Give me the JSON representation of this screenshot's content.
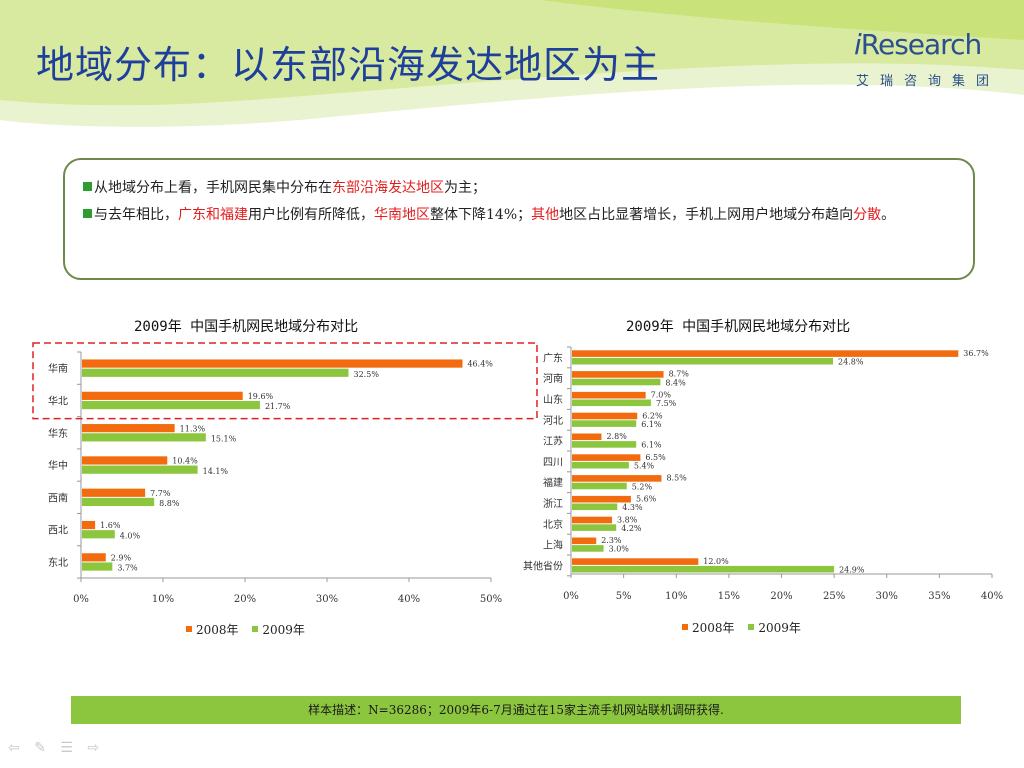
{
  "title": "地域分布：以东部沿海发达地区为主",
  "logo": {
    "brand": "Research",
    "brand_prefix": "i",
    "subtitle": "艾瑞咨询集团"
  },
  "summary": {
    "line1_pre": "从地域分布上看，手机网民集中分布在",
    "line1_red": "东部沿海发达地区",
    "line1_post": "为主；",
    "line2_a": "与去年相比，",
    "line2_red1": "广东和福建",
    "line2_b": "用户比例有所降低，",
    "line2_red2": "华南地区",
    "line2_c": "整体下降14%；",
    "line2_red3": "其他",
    "line2_d": "地区占比显著增长，手机上网用户地域分布趋向",
    "line2_red4": "分散",
    "line2_e": "。"
  },
  "colors": {
    "s2008": "#f26b0f",
    "s2009": "#8cc63f",
    "highlight": "#e02020"
  },
  "legend": {
    "s2008": "2008年",
    "s2009": "2009年"
  },
  "note": "样本描述：N=36286；2009年6-7月通过在15家主流手机网站联机调研获得.",
  "chart_data": [
    {
      "type": "bar",
      "orientation": "horizontal",
      "title": "2009年 中国手机网民地域分布对比",
      "categories": [
        "华南",
        "华北",
        "华东",
        "华中",
        "西南",
        "西北",
        "东北"
      ],
      "series": [
        {
          "name": "2008年",
          "values": [
            46.4,
            19.6,
            11.3,
            10.4,
            7.7,
            1.6,
            2.9
          ],
          "labels": [
            "46.4%",
            "19.6%",
            "11.3%",
            "10.4%",
            "7.7%",
            "1.6%",
            "2.9%"
          ]
        },
        {
          "name": "2009年",
          "values": [
            32.5,
            21.7,
            15.1,
            14.1,
            8.8,
            4.0,
            3.7
          ],
          "labels": [
            "32.5%",
            "21.7%",
            "15.1%",
            "14.1%",
            "8.8%",
            "4.0%",
            "3.7%"
          ]
        }
      ],
      "xlim": [
        0,
        50
      ],
      "xticks": [
        "0%",
        "10%",
        "20%",
        "30%",
        "40%",
        "50%"
      ],
      "highlighted_categories": [
        "华南",
        "华北"
      ],
      "legend_position": "bottom"
    },
    {
      "type": "bar",
      "orientation": "horizontal",
      "title": "2009年 中国手机网民地域分布对比",
      "categories": [
        "广东",
        "河南",
        "山东",
        "河北",
        "江苏",
        "四川",
        "福建",
        "浙江",
        "北京",
        "上海",
        "其他省份"
      ],
      "series": [
        {
          "name": "2008年",
          "values": [
            36.7,
            8.7,
            7.0,
            6.2,
            2.8,
            6.5,
            8.5,
            5.6,
            3.8,
            2.3,
            12.0
          ],
          "labels": [
            "36.7%",
            "8.7%",
            "7.0%",
            "6.2%",
            "2.8%",
            "6.5%",
            "8.5%",
            "5.6%",
            "3.8%",
            "2.3%",
            "12.0%"
          ]
        },
        {
          "name": "2009年",
          "values": [
            24.8,
            8.4,
            7.5,
            6.1,
            6.1,
            5.4,
            5.2,
            4.3,
            4.2,
            3.0,
            24.9
          ],
          "labels": [
            "24.8%",
            "8.4%",
            "7.5%",
            "6.1%",
            "6.1%",
            "5.4%",
            "5.2%",
            "4.3%",
            "4.2%",
            "3.0%",
            "24.9%"
          ]
        }
      ],
      "xlim": [
        0,
        40
      ],
      "xticks": [
        "0%",
        "5%",
        "10%",
        "15%",
        "20%",
        "25%",
        "30%",
        "35%",
        "40%"
      ],
      "legend_position": "bottom"
    }
  ]
}
